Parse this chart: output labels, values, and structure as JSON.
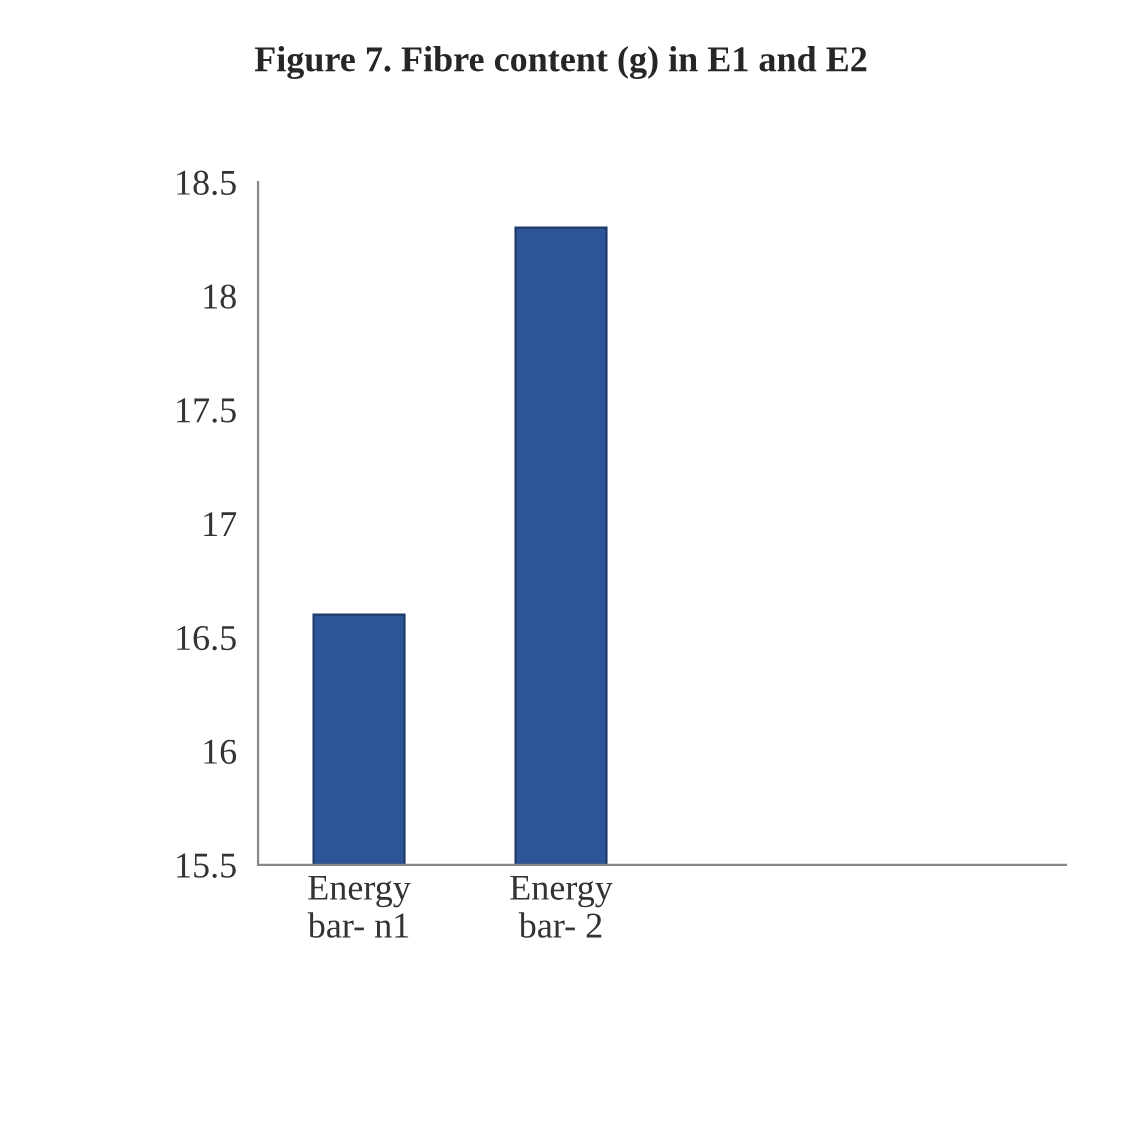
{
  "chart_data": {
    "type": "bar",
    "title": "Figure 7. Fibre content (g) in E1 and E2",
    "categories": [
      "Energy bar- n1",
      "Energy bar- 2",
      null,
      null
    ],
    "values": [
      16.6,
      18.3,
      null,
      null
    ],
    "color": "#2e5597",
    "ylim": [
      15.5,
      18.5
    ],
    "yticks": [
      15.5,
      16,
      16.5,
      17,
      17.5,
      18,
      18.5
    ],
    "grid": false,
    "legend": false
  }
}
